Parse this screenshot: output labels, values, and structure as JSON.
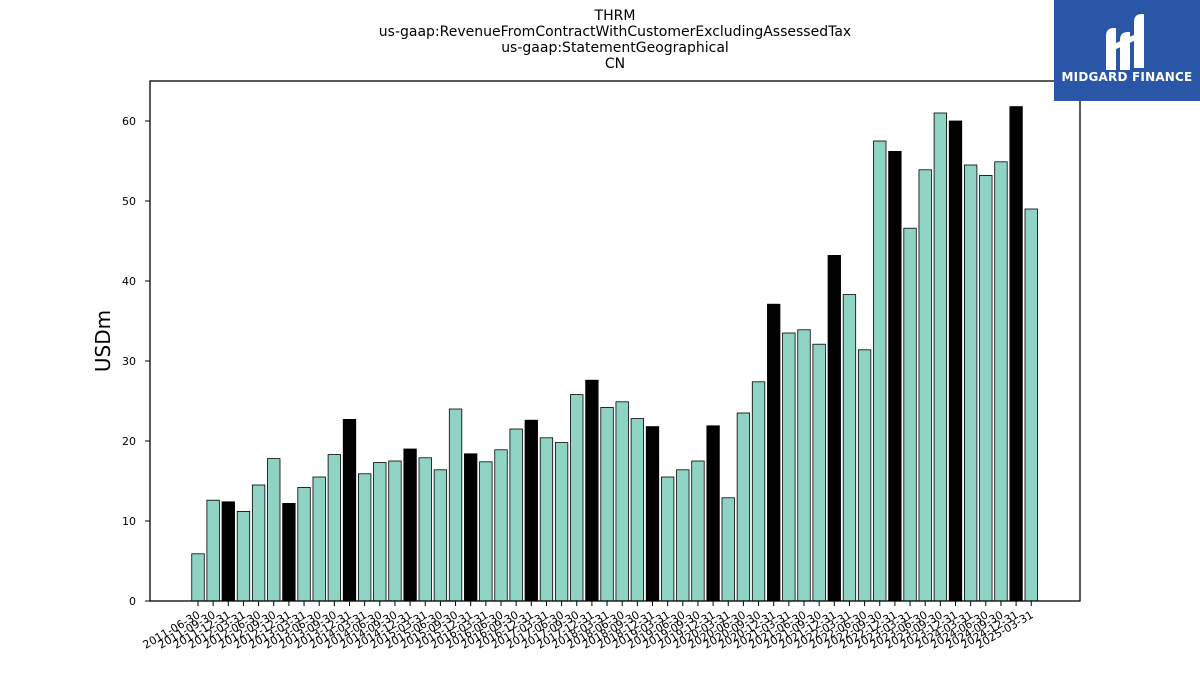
{
  "title_lines": [
    "THRM",
    "us-gaap:RevenueFromContractWithCustomerExcludingAssessedTax",
    "us-gaap:StatementGeographical",
    "CN"
  ],
  "brand": {
    "name": "MIDGARD FINANCE",
    "background": "#2a56a8",
    "logo_icon": "midgard-logo-icon"
  },
  "chart_data": {
    "type": "bar",
    "title": "THRM us-gaap:RevenueFromContractWithCustomerExcludingAssessedTax us-gaap:StatementGeographical CN",
    "xlabel": "",
    "ylabel": "USDm",
    "ylim": [
      0,
      65
    ],
    "yticks": [
      0,
      10,
      20,
      30,
      40,
      50,
      60
    ],
    "grid": false,
    "colors": {
      "quarter": "#8fd3c5",
      "fiscal_year_end": "#000000",
      "edge": "#000000"
    },
    "categories": [
      "2011-06-30",
      "2011-09-30",
      "2011-12-31",
      "2012-03-31",
      "2012-06-30",
      "2012-09-30",
      "2012-12-31",
      "2013-03-31",
      "2013-06-30",
      "2013-09-30",
      "2013-12-31",
      "2014-03-31",
      "2014-06-30",
      "2014-09-30",
      "2014-12-31",
      "2015-03-31",
      "2015-06-30",
      "2015-09-30",
      "2015-12-31",
      "2016-03-31",
      "2016-06-30",
      "2016-09-30",
      "2016-12-31",
      "2017-03-31",
      "2017-06-30",
      "2017-09-30",
      "2017-12-31",
      "2018-03-31",
      "2018-06-30",
      "2018-09-30",
      "2018-12-31",
      "2019-03-31",
      "2019-06-30",
      "2019-09-30",
      "2019-12-31",
      "2020-03-31",
      "2020-06-30",
      "2020-09-30",
      "2020-12-31",
      "2021-03-31",
      "2021-06-30",
      "2021-09-30",
      "2021-12-31",
      "2022-03-31",
      "2022-06-30",
      "2022-09-30",
      "2022-12-31",
      "2023-03-31",
      "2023-06-30",
      "2023-09-30",
      "2023-12-31",
      "2024-03-31",
      "2024-06-30",
      "2024-09-30",
      "2024-12-31",
      "2025-03-31"
    ],
    "values": [
      5.9,
      12.6,
      12.4,
      11.2,
      14.5,
      17.8,
      12.2,
      14.2,
      15.5,
      18.3,
      22.7,
      15.9,
      17.3,
      17.5,
      19.0,
      17.9,
      16.4,
      24.0,
      18.4,
      17.4,
      18.9,
      21.5,
      22.6,
      20.4,
      19.8,
      25.8,
      27.6,
      24.2,
      24.9,
      22.8,
      21.8,
      15.5,
      16.4,
      17.5,
      21.9,
      12.9,
      23.5,
      27.4,
      37.1,
      33.5,
      33.9,
      32.1,
      43.2,
      38.3,
      31.4,
      57.5,
      56.2,
      46.6,
      53.9,
      61.0,
      60.0,
      54.5,
      53.2,
      54.9,
      61.8,
      49.0
    ],
    "highlight_indices": [
      2,
      6,
      10,
      14,
      18,
      22,
      26,
      30,
      34,
      38,
      42,
      46,
      50,
      54
    ]
  }
}
